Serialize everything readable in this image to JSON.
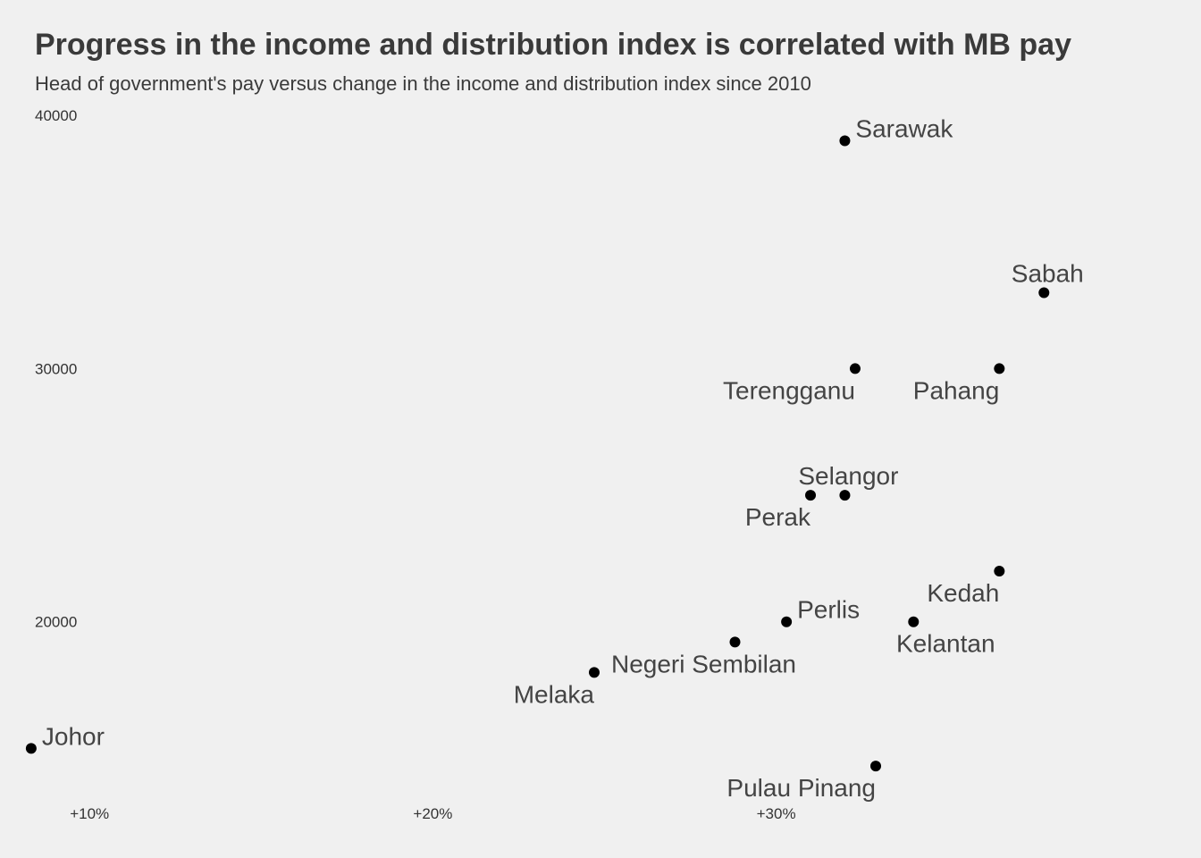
{
  "title": "Progress in the income and distribution index is correlated with MB pay",
  "subtitle": "Head of government's pay versus change in the income and distribution index since 2010",
  "chart_data": {
    "type": "scatter",
    "title": "Progress in the income and distribution index is correlated with MB pay",
    "subtitle": "Head of government's pay versus change in the income and distribution index since 2010",
    "xlabel": "",
    "ylabel": "",
    "x_unit": "percent change",
    "xlim": [
      7.6,
      42.4
    ],
    "ylim": [
      13000,
      40500
    ],
    "x_ticks": [
      {
        "value": 10,
        "label": "+10%"
      },
      {
        "value": 20,
        "label": "+20%"
      },
      {
        "value": 30,
        "label": "+30%"
      }
    ],
    "y_ticks": [
      {
        "value": 20000,
        "label": "20000"
      },
      {
        "value": 30000,
        "label": "30000"
      },
      {
        "value": 40000,
        "label": "40000"
      }
    ],
    "grid": false,
    "legend": "none",
    "colors": {
      "points": "#000000",
      "labels": "#444444",
      "background": "#f0f0f0"
    },
    "points": [
      {
        "label": "Sarawak",
        "x": 32.0,
        "y": 39000,
        "label_pos": "above-right"
      },
      {
        "label": "Sabah",
        "x": 37.8,
        "y": 33000,
        "label_pos": "above"
      },
      {
        "label": "Terengganu",
        "x": 32.3,
        "y": 30000,
        "label_pos": "below-left"
      },
      {
        "label": "Pahang",
        "x": 36.5,
        "y": 30000,
        "label_pos": "below-left"
      },
      {
        "label": "Selangor",
        "x": 32.0,
        "y": 25000,
        "label_pos": "above"
      },
      {
        "label": "Perak",
        "x": 31.0,
        "y": 25000,
        "label_pos": "below-left"
      },
      {
        "label": "Kedah",
        "x": 36.5,
        "y": 22000,
        "label_pos": "below-left"
      },
      {
        "label": "Perlis",
        "x": 30.3,
        "y": 20000,
        "label_pos": "above-right"
      },
      {
        "label": "Kelantan",
        "x": 34.0,
        "y": 20000,
        "label_pos": "below"
      },
      {
        "label": "Negeri Sembilan",
        "x": 28.8,
        "y": 19200,
        "label_pos": "below-center"
      },
      {
        "label": "Melaka",
        "x": 24.7,
        "y": 18000,
        "label_pos": "below-left"
      },
      {
        "label": "Johor",
        "x": 8.3,
        "y": 15000,
        "label_pos": "above-right"
      },
      {
        "label": "Pulau Pinang",
        "x": 32.9,
        "y": 14300,
        "label_pos": "below-left"
      }
    ]
  }
}
